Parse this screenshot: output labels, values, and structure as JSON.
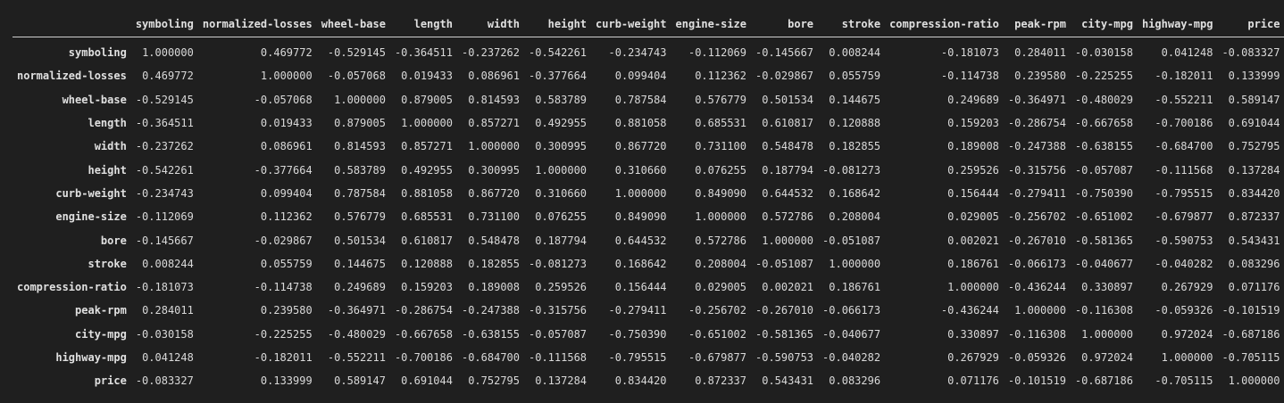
{
  "table": {
    "index_header": "",
    "columns": [
      "symboling",
      "normalized-losses",
      "wheel-base",
      "length",
      "width",
      "height",
      "curb-weight",
      "engine-size",
      "bore",
      "stroke",
      "compression-ratio",
      "peak-rpm",
      "city-mpg",
      "highway-mpg",
      "price"
    ],
    "rows": [
      {
        "label": "symboling",
        "values": [
          "1.000000",
          "0.469772",
          "-0.529145",
          "-0.364511",
          "-0.237262",
          "-0.542261",
          "-0.234743",
          "-0.112069",
          "-0.145667",
          "0.008244",
          "-0.181073",
          "0.284011",
          "-0.030158",
          "0.041248",
          "-0.083327"
        ]
      },
      {
        "label": "normalized-losses",
        "values": [
          "0.469772",
          "1.000000",
          "-0.057068",
          "0.019433",
          "0.086961",
          "-0.377664",
          "0.099404",
          "0.112362",
          "-0.029867",
          "0.055759",
          "-0.114738",
          "0.239580",
          "-0.225255",
          "-0.182011",
          "0.133999"
        ]
      },
      {
        "label": "wheel-base",
        "values": [
          "-0.529145",
          "-0.057068",
          "1.000000",
          "0.879005",
          "0.814593",
          "0.583789",
          "0.787584",
          "0.576779",
          "0.501534",
          "0.144675",
          "0.249689",
          "-0.364971",
          "-0.480029",
          "-0.552211",
          "0.589147"
        ]
      },
      {
        "label": "length",
        "values": [
          "-0.364511",
          "0.019433",
          "0.879005",
          "1.000000",
          "0.857271",
          "0.492955",
          "0.881058",
          "0.685531",
          "0.610817",
          "0.120888",
          "0.159203",
          "-0.286754",
          "-0.667658",
          "-0.700186",
          "0.691044"
        ]
      },
      {
        "label": "width",
        "values": [
          "-0.237262",
          "0.086961",
          "0.814593",
          "0.857271",
          "1.000000",
          "0.300995",
          "0.867720",
          "0.731100",
          "0.548478",
          "0.182855",
          "0.189008",
          "-0.247388",
          "-0.638155",
          "-0.684700",
          "0.752795"
        ]
      },
      {
        "label": "height",
        "values": [
          "-0.542261",
          "-0.377664",
          "0.583789",
          "0.492955",
          "0.300995",
          "1.000000",
          "0.310660",
          "0.076255",
          "0.187794",
          "-0.081273",
          "0.259526",
          "-0.315756",
          "-0.057087",
          "-0.111568",
          "0.137284"
        ]
      },
      {
        "label": "curb-weight",
        "values": [
          "-0.234743",
          "0.099404",
          "0.787584",
          "0.881058",
          "0.867720",
          "0.310660",
          "1.000000",
          "0.849090",
          "0.644532",
          "0.168642",
          "0.156444",
          "-0.279411",
          "-0.750390",
          "-0.795515",
          "0.834420"
        ]
      },
      {
        "label": "engine-size",
        "values": [
          "-0.112069",
          "0.112362",
          "0.576779",
          "0.685531",
          "0.731100",
          "0.076255",
          "0.849090",
          "1.000000",
          "0.572786",
          "0.208004",
          "0.029005",
          "-0.256702",
          "-0.651002",
          "-0.679877",
          "0.872337"
        ]
      },
      {
        "label": "bore",
        "values": [
          "-0.145667",
          "-0.029867",
          "0.501534",
          "0.610817",
          "0.548478",
          "0.187794",
          "0.644532",
          "0.572786",
          "1.000000",
          "-0.051087",
          "0.002021",
          "-0.267010",
          "-0.581365",
          "-0.590753",
          "0.543431"
        ]
      },
      {
        "label": "stroke",
        "values": [
          "0.008244",
          "0.055759",
          "0.144675",
          "0.120888",
          "0.182855",
          "-0.081273",
          "0.168642",
          "0.208004",
          "-0.051087",
          "1.000000",
          "0.186761",
          "-0.066173",
          "-0.040677",
          "-0.040282",
          "0.083296"
        ]
      },
      {
        "label": "compression-ratio",
        "values": [
          "-0.181073",
          "-0.114738",
          "0.249689",
          "0.159203",
          "0.189008",
          "0.259526",
          "0.156444",
          "0.029005",
          "0.002021",
          "0.186761",
          "1.000000",
          "-0.436244",
          "0.330897",
          "0.267929",
          "0.071176"
        ]
      },
      {
        "label": "peak-rpm",
        "values": [
          "0.284011",
          "0.239580",
          "-0.364971",
          "-0.286754",
          "-0.247388",
          "-0.315756",
          "-0.279411",
          "-0.256702",
          "-0.267010",
          "-0.066173",
          "-0.436244",
          "1.000000",
          "-0.116308",
          "-0.059326",
          "-0.101519"
        ]
      },
      {
        "label": "city-mpg",
        "values": [
          "-0.030158",
          "-0.225255",
          "-0.480029",
          "-0.667658",
          "-0.638155",
          "-0.057087",
          "-0.750390",
          "-0.651002",
          "-0.581365",
          "-0.040677",
          "0.330897",
          "-0.116308",
          "1.000000",
          "0.972024",
          "-0.687186"
        ]
      },
      {
        "label": "highway-mpg",
        "values": [
          "0.041248",
          "-0.182011",
          "-0.552211",
          "-0.700186",
          "-0.684700",
          "-0.111568",
          "-0.795515",
          "-0.679877",
          "-0.590753",
          "-0.040282",
          "0.267929",
          "-0.059326",
          "0.972024",
          "1.000000",
          "-0.705115"
        ]
      },
      {
        "label": "price",
        "values": [
          "-0.083327",
          "0.133999",
          "0.589147",
          "0.691044",
          "0.752795",
          "0.137284",
          "0.834420",
          "0.872337",
          "0.543431",
          "0.083296",
          "0.071176",
          "-0.101519",
          "-0.687186",
          "-0.705115",
          "1.000000"
        ]
      }
    ]
  }
}
